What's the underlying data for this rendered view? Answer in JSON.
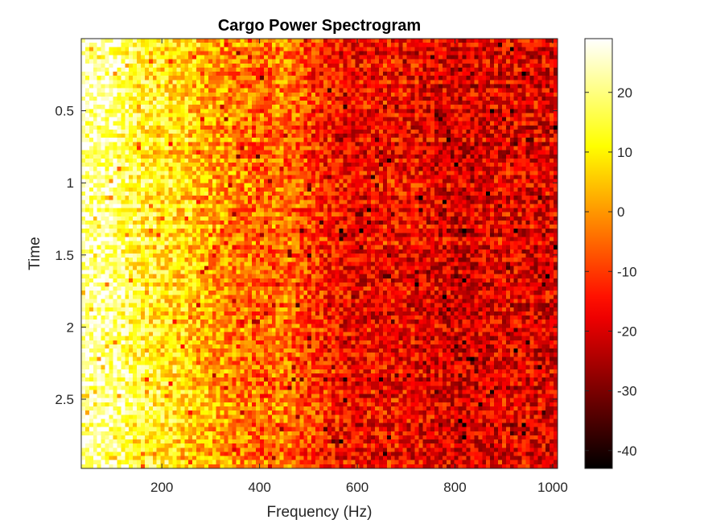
{
  "chart_data": {
    "type": "heatmap",
    "title": "Cargo Power Spectrogram",
    "xlabel": "Frequency (Hz)",
    "ylabel": "Time",
    "xlim": [
      35,
      1010
    ],
    "ylim": [
      0.0,
      2.98
    ],
    "y_direction": "reverse",
    "x_ticks": [
      200,
      400,
      600,
      800,
      1000
    ],
    "x_tick_labels": [
      "200",
      "400",
      "600",
      "800",
      "1000"
    ],
    "y_ticks": [
      0.5,
      1,
      1.5,
      2,
      2.5
    ],
    "y_tick_labels": [
      "0.5",
      "1",
      "1.5",
      "2",
      "2.5"
    ],
    "colormap": "hot",
    "colorbar": {
      "limits": [
        -43,
        29
      ],
      "ticks": [
        -40,
        -30,
        -20,
        -10,
        0,
        10,
        20
      ],
      "tick_labels": [
        "-40",
        "-30",
        "-20",
        "-10",
        "0",
        "10",
        "20"
      ]
    },
    "grid": false,
    "power_profile_db": {
      "frequency_hz": [
        40,
        100,
        150,
        200,
        250,
        300,
        350,
        400,
        450,
        500,
        550,
        600,
        650,
        700,
        750,
        800,
        850,
        900,
        950,
        1000
      ],
      "mean_power_db": [
        24,
        22,
        14,
        11,
        8,
        2,
        -2,
        -5,
        -3,
        -9,
        -14,
        -17,
        -15,
        -16,
        -18,
        -20,
        -19,
        -17,
        -18,
        -19
      ]
    }
  }
}
